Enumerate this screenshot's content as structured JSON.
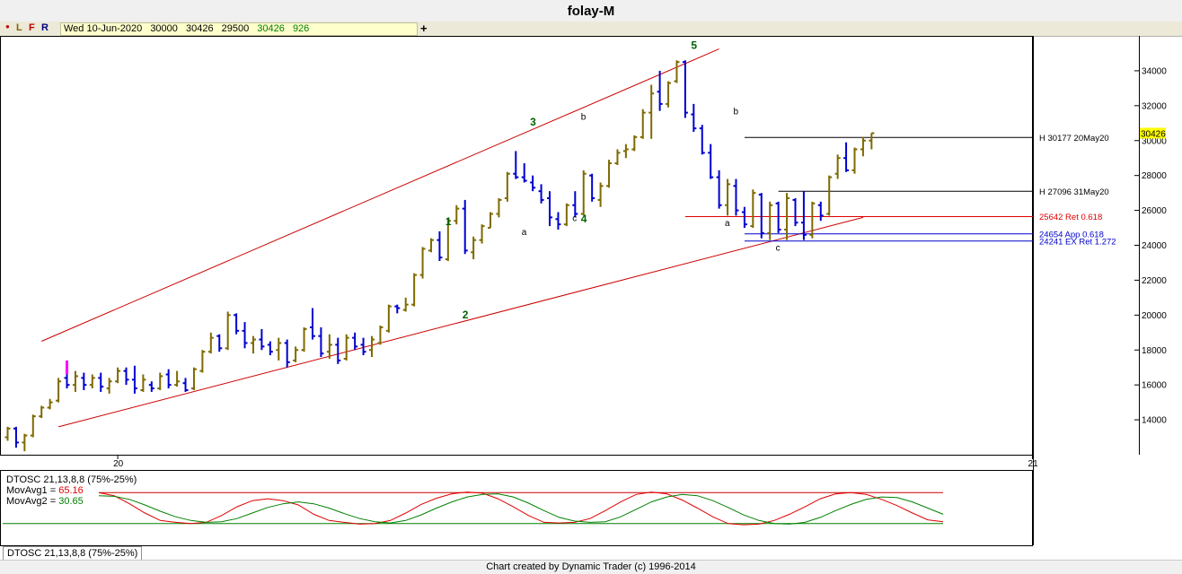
{
  "window": {
    "title": "folay-M"
  },
  "toolbar": {
    "icons": [
      {
        "name": "dot-icon",
        "glyph": "●",
        "color": "#c00000"
      },
      {
        "name": "L",
        "glyph": "L",
        "color": "#806000"
      },
      {
        "name": "F",
        "glyph": "F",
        "color": "#c00000"
      },
      {
        "name": "R",
        "glyph": "R",
        "color": "#000080"
      }
    ],
    "date": "Wed 10-Jun-2020",
    "open": "30000",
    "high": "30426",
    "low": "29500",
    "close": "30426",
    "volume": "926",
    "add_label": "+"
  },
  "footer": {
    "credit": "Chart created by Dynamic Trader  (c) 1996-2014"
  },
  "oscillator": {
    "tab_label": "DTOSC 21,13,8,8 (75%-25%)",
    "title": "DTOSC 21,13,8,8 (75%-25%)",
    "ma1_label": "MovAvg1 = ",
    "ma1_value": "65.16",
    "ma2_label": "MovAvg2 = ",
    "ma2_value": "30.65",
    "upper_level": 75,
    "lower_level": 25
  },
  "chart_data": {
    "type": "ohlc",
    "price_axis": {
      "min": 12000,
      "max": 36000,
      "ticks": [
        14000,
        16000,
        18000,
        20000,
        22000,
        24000,
        26000,
        28000,
        30000,
        32000,
        34000
      ]
    },
    "time_axis_labels": [
      {
        "label": "20",
        "bar": 13
      },
      {
        "label": "21",
        "bar": 121
      }
    ],
    "last_price_label": "30426",
    "bars": [
      [
        13000,
        13600,
        12800,
        13500
      ],
      [
        13500,
        13600,
        12400,
        12700
      ],
      [
        12700,
        13200,
        12200,
        13100
      ],
      [
        13100,
        14300,
        13000,
        14200
      ],
      [
        14200,
        14800,
        14100,
        14700
      ],
      [
        14700,
        15200,
        14600,
        15000
      ],
      [
        15100,
        16400,
        15000,
        16200
      ],
      [
        16400,
        17200,
        15800,
        16000
      ],
      [
        16000,
        16800,
        15600,
        16500
      ],
      [
        16400,
        16700,
        15700,
        16000
      ],
      [
        16000,
        16600,
        15800,
        16400
      ],
      [
        16400,
        16700,
        15600,
        15900
      ],
      [
        15800,
        16400,
        15500,
        16200
      ],
      [
        16200,
        17000,
        16100,
        16800
      ],
      [
        16800,
        17000,
        16000,
        16300
      ],
      [
        16300,
        17100,
        15500,
        15800
      ],
      [
        15700,
        16600,
        15600,
        16300
      ],
      [
        16000,
        16200,
        15600,
        15800
      ],
      [
        15800,
        16700,
        15700,
        16500
      ],
      [
        16600,
        16900,
        15800,
        16000
      ],
      [
        16000,
        16800,
        15900,
        16200
      ],
      [
        16100,
        16400,
        15600,
        15700
      ],
      [
        15800,
        17000,
        15700,
        16900
      ],
      [
        16800,
        18000,
        16700,
        17900
      ],
      [
        17900,
        19000,
        17800,
        18700
      ],
      [
        18800,
        18900,
        17900,
        18100
      ],
      [
        18100,
        20200,
        18000,
        20000
      ],
      [
        20000,
        20100,
        18900,
        19100
      ],
      [
        19100,
        19600,
        18100,
        18400
      ],
      [
        18400,
        18800,
        17800,
        18600
      ],
      [
        18600,
        19200,
        18000,
        18200
      ],
      [
        18300,
        18500,
        17700,
        17900
      ],
      [
        18000,
        18700,
        17400,
        18400
      ],
      [
        18400,
        18600,
        17000,
        17300
      ],
      [
        17400,
        18200,
        17300,
        18000
      ],
      [
        18000,
        19300,
        17900,
        19200
      ],
      [
        19300,
        20400,
        18600,
        18800
      ],
      [
        18800,
        19300,
        17600,
        17800
      ],
      [
        17900,
        18900,
        17500,
        18300
      ],
      [
        18300,
        18700,
        17200,
        17400
      ],
      [
        17500,
        18900,
        17400,
        18700
      ],
      [
        18700,
        19000,
        18000,
        18200
      ],
      [
        18300,
        18700,
        17700,
        17900
      ],
      [
        18000,
        18800,
        17600,
        18600
      ],
      [
        18400,
        19400,
        18300,
        19300
      ],
      [
        19100,
        20600,
        19000,
        20500
      ],
      [
        20500,
        20600,
        20100,
        20400
      ],
      [
        20300,
        21000,
        20200,
        20600
      ],
      [
        20600,
        22400,
        20500,
        22300
      ],
      [
        22300,
        23900,
        22100,
        23800
      ],
      [
        23700,
        24400,
        23600,
        24300
      ],
      [
        24300,
        24800,
        23100,
        23300
      ],
      [
        23200,
        25500,
        23100,
        25400
      ],
      [
        25400,
        26300,
        25200,
        26100
      ],
      [
        26100,
        26600,
        23500,
        23700
      ],
      [
        23600,
        24500,
        23200,
        24300
      ],
      [
        24300,
        25200,
        24100,
        25100
      ],
      [
        25000,
        25900,
        25000,
        25800
      ],
      [
        25800,
        26700,
        25600,
        26600
      ],
      [
        26700,
        28200,
        26500,
        28100
      ],
      [
        28100,
        29400,
        27800,
        27900
      ],
      [
        27900,
        28700,
        27600,
        27700
      ],
      [
        27600,
        28000,
        27100,
        27300
      ],
      [
        27100,
        27500,
        26400,
        26600
      ],
      [
        26700,
        27100,
        25100,
        25600
      ],
      [
        25500,
        25900,
        24900,
        25200
      ],
      [
        25200,
        26400,
        25100,
        26300
      ],
      [
        26300,
        27100,
        25600,
        25800
      ],
      [
        25800,
        28300,
        25700,
        28100
      ],
      [
        28000,
        28100,
        26500,
        26700
      ],
      [
        26600,
        27600,
        26200,
        27400
      ],
      [
        27400,
        28900,
        27300,
        28700
      ],
      [
        28700,
        29500,
        28600,
        29300
      ],
      [
        29400,
        29800,
        29000,
        29500
      ],
      [
        29500,
        30300,
        29400,
        30200
      ],
      [
        30200,
        31800,
        30100,
        31600
      ],
      [
        31600,
        33200,
        30100,
        32700
      ],
      [
        32800,
        34000,
        31700,
        32100
      ],
      [
        32100,
        33400,
        31900,
        33300
      ],
      [
        33400,
        34600,
        33300,
        34500
      ],
      [
        34500,
        34600,
        31300,
        31600
      ],
      [
        31500,
        32100,
        30500,
        30700
      ],
      [
        30700,
        30900,
        29200,
        29300
      ],
      [
        29300,
        29800,
        27800,
        27900
      ],
      [
        27900,
        28300,
        26100,
        26300
      ],
      [
        26300,
        27800,
        25700,
        27500
      ],
      [
        27400,
        27800,
        25700,
        26000
      ],
      [
        25900,
        26200,
        25000,
        25200
      ],
      [
        25100,
        27200,
        25000,
        27000
      ],
      [
        26900,
        27000,
        24400,
        24700
      ],
      [
        24700,
        26500,
        24300,
        26300
      ],
      [
        26400,
        26500,
        24700,
        24900
      ],
      [
        24900,
        27000,
        24300,
        26700
      ],
      [
        26600,
        26700,
        25100,
        25300
      ],
      [
        25300,
        27100,
        24300,
        24600
      ],
      [
        24600,
        26500,
        24400,
        26400
      ],
      [
        26300,
        26500,
        25400,
        25700
      ],
      [
        25800,
        28000,
        25700,
        27900
      ],
      [
        28100,
        29200,
        27800,
        29000
      ],
      [
        29000,
        29900,
        28200,
        28300
      ],
      [
        28300,
        29600,
        28100,
        29500
      ],
      [
        29500,
        30200,
        29100,
        30000
      ],
      [
        30000,
        30426,
        29500,
        30426
      ]
    ],
    "annotations": [
      {
        "text": "5",
        "bar": 81,
        "price": 35250,
        "color": "#006000"
      },
      {
        "text": "3",
        "bar": 62,
        "price": 30850,
        "color": "#006000"
      },
      {
        "text": "1",
        "bar": 52,
        "price": 25150,
        "color": "#006000"
      },
      {
        "text": "2",
        "bar": 54,
        "price": 19800,
        "color": "#006000"
      },
      {
        "text": "4",
        "bar": 68,
        "price": 25300,
        "color": "#006000"
      },
      {
        "text": "b",
        "bar": 68,
        "price": 31200,
        "color": "#000000"
      },
      {
        "text": "c",
        "bar": 67,
        "price": 25400,
        "color": "#000000"
      },
      {
        "text": "a",
        "bar": 61,
        "price": 24600,
        "color": "#000000"
      },
      {
        "text": "b",
        "bar": 86,
        "price": 31500,
        "color": "#000000"
      },
      {
        "text": "a",
        "bar": 85,
        "price": 25100,
        "color": "#000000"
      },
      {
        "text": "c",
        "bar": 91,
        "price": 23700,
        "color": "#000000"
      }
    ],
    "levels": [
      {
        "text": "H 30177 20May20",
        "price": 30177,
        "from_bar": 87,
        "color": "#000000"
      },
      {
        "text": "H 27096 31May20",
        "price": 27096,
        "from_bar": 91,
        "color": "#000000"
      },
      {
        "text": "25642 Ret 0.618",
        "price": 25642,
        "from_bar": 80,
        "color": "#e00000"
      },
      {
        "text": "24654 App 0.618",
        "price": 24654,
        "from_bar": 87,
        "color": "#0000cc"
      },
      {
        "text": "24241 EX Ret 1.272",
        "price": 24241,
        "from_bar": 87,
        "color": "#0000cc"
      }
    ],
    "channel": [
      {
        "from": [
          4,
          18500
        ],
        "to": [
          84,
          35250
        ]
      },
      {
        "from": [
          6,
          13600
        ],
        "to": [
          101,
          25600
        ]
      }
    ],
    "osc_ma1": [
      75,
      70,
      57,
      42,
      30,
      27,
      25,
      27,
      38,
      52,
      62,
      65,
      62,
      55,
      40,
      30,
      27,
      24,
      25,
      30,
      42,
      56,
      66,
      73,
      76,
      74,
      65,
      52,
      38,
      27,
      26,
      27,
      33,
      46,
      60,
      72,
      76,
      73,
      63,
      50,
      36,
      25,
      23,
      24,
      30,
      40,
      52,
      65,
      73,
      75,
      72,
      64,
      54,
      42,
      31,
      28
    ],
    "osc_ma2": [
      70,
      69,
      64,
      55,
      45,
      36,
      30,
      27,
      28,
      33,
      42,
      51,
      57,
      60,
      57,
      50,
      41,
      33,
      28,
      26,
      30,
      39,
      50,
      60,
      68,
      72,
      73,
      68,
      58,
      46,
      35,
      29,
      27,
      28,
      36,
      48,
      60,
      68,
      72,
      70,
      62,
      51,
      39,
      30,
      25,
      24,
      27,
      35,
      46,
      56,
      64,
      68,
      67,
      60,
      50,
      40
    ]
  }
}
